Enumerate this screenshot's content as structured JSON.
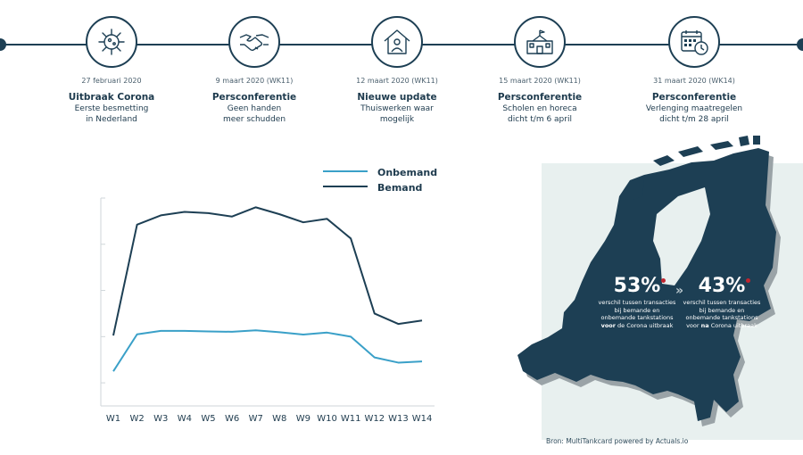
{
  "timeline": {
    "events": [
      {
        "date": "27 februari 2020",
        "title": "Uitbraak Corona",
        "desc": "Eerste besmetting\nin Nederland",
        "icon": "virus-icon"
      },
      {
        "date": "9 maart 2020 (WK11)",
        "title": "Persconferentie",
        "desc": "Geen handen\nmeer schudden",
        "icon": "handshake-icon"
      },
      {
        "date": "12 maart 2020 (WK11)",
        "title": "Nieuwe update",
        "desc": "Thuiswerken waar\nmogelijk",
        "icon": "home-office-icon"
      },
      {
        "date": "15 maart 2020 (WK11)",
        "title": "Persconferentie",
        "desc": "Scholen en horeca\ndicht t/m 6 april",
        "icon": "school-icon"
      },
      {
        "date": "31 maart 2020 (WK14)",
        "title": "Persconferentie",
        "desc": "Verlenging maatregelen\ndicht t/m 28 april",
        "icon": "calendar-clock-icon"
      }
    ]
  },
  "chart_data": {
    "type": "line",
    "title": "",
    "xlabel": "",
    "ylabel": "",
    "categories": [
      "W1",
      "W2",
      "W3",
      "W4",
      "W5",
      "W6",
      "W7",
      "W8",
      "W9",
      "W10",
      "W11",
      "W12",
      "W13",
      "W14"
    ],
    "series": [
      {
        "name": "Onbemand",
        "color": "#3aa0c8",
        "values": [
          10,
          42,
          45,
          45,
          44.5,
          44.2,
          45.5,
          43.8,
          41.8,
          43.5,
          40,
          22,
          17.5,
          18.5
        ]
      },
      {
        "name": "Bemand",
        "color": "#1d3f54",
        "values": [
          41,
          137,
          145,
          148,
          147,
          144,
          152,
          146,
          139,
          142,
          125,
          60,
          51,
          54
        ]
      }
    ],
    "ylim": [
      -20,
      160
    ],
    "grid": false,
    "legend": "top-right"
  },
  "map": {
    "stat_before": {
      "value": "53%",
      "line1": "verschil tussen transacties",
      "line2": "bij bemande en",
      "line3": "onbemande tankstations",
      "strong": "voor",
      "line4_rest": " de Corona uitbraak"
    },
    "stat_after": {
      "value": "43%",
      "line1": "verschil tussen transacties",
      "line2": "bij bemande en",
      "line3": "onbemande tankstations",
      "line4_pre": "voor ",
      "strong": "na",
      "line4_rest": " Corona uitbraak"
    },
    "source": "Bron: MultiTankcard powered by Actuals.io"
  },
  "colors": {
    "dark": "#1d3f54",
    "light": "#3aa0c8",
    "accent": "#c0252f"
  }
}
